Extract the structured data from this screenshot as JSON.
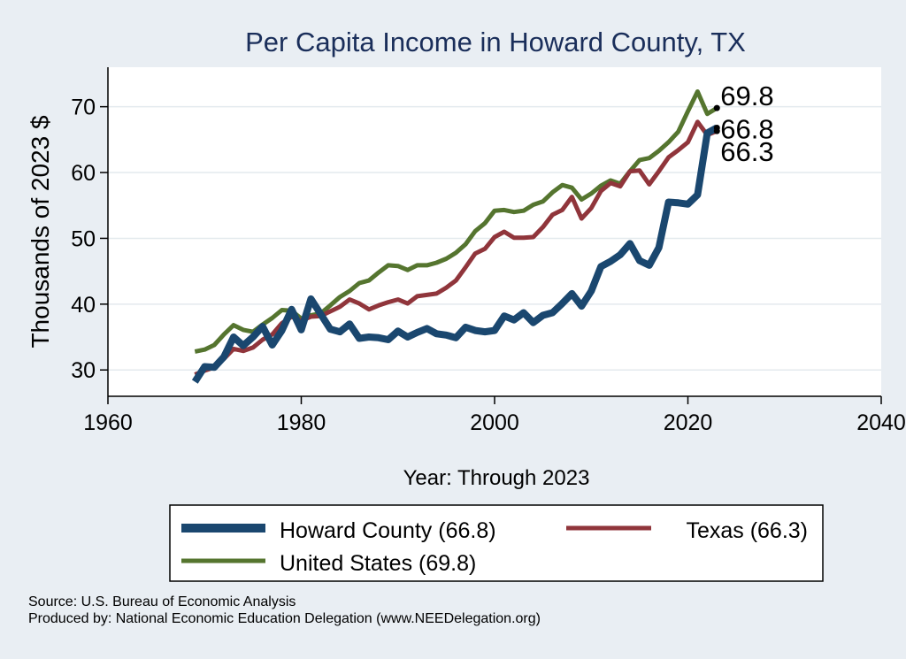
{
  "chart_data": {
    "type": "line",
    "title": "Per Capita Income in Howard County, TX",
    "xlabel": "Year: Through 2023",
    "ylabel": "Thousands of 2023 $",
    "xlim": [
      1960,
      2040
    ],
    "ylim": [
      26,
      76
    ],
    "xticks": [
      "1960",
      "1980",
      "2000",
      "2020",
      "2040"
    ],
    "yticks": [
      "30",
      "40",
      "50",
      "60",
      "70"
    ],
    "grid": true,
    "legend_position": "bottom",
    "x": [
      1969,
      1970,
      1971,
      1972,
      1973,
      1974,
      1975,
      1976,
      1977,
      1978,
      1979,
      1980,
      1981,
      1982,
      1983,
      1984,
      1985,
      1986,
      1987,
      1988,
      1989,
      1990,
      1991,
      1992,
      1993,
      1994,
      1995,
      1996,
      1997,
      1998,
      1999,
      2000,
      2001,
      2002,
      2003,
      2004,
      2005,
      2006,
      2007,
      2008,
      2009,
      2010,
      2011,
      2012,
      2013,
      2014,
      2015,
      2016,
      2017,
      2018,
      2019,
      2020,
      2021,
      2022,
      2023
    ],
    "series": [
      {
        "name": "Howard County (66.8)",
        "color": "#1a476f",
        "end_label": "66.8",
        "values": [
          28.2,
          30.5,
          30.4,
          32.0,
          35.0,
          33.7,
          35.0,
          36.6,
          33.8,
          36.0,
          39.2,
          36.1,
          40.8,
          38.5,
          36.2,
          35.8,
          37.0,
          34.8,
          35.0,
          34.9,
          34.6,
          35.9,
          35.0,
          35.7,
          36.3,
          35.5,
          35.3,
          34.9,
          36.5,
          36.0,
          35.8,
          36.0,
          38.2,
          37.6,
          38.7,
          37.2,
          38.3,
          38.7,
          40.1,
          41.6,
          39.7,
          42.0,
          45.7,
          46.5,
          47.5,
          49.2,
          46.6,
          45.9,
          48.6,
          55.5,
          55.4,
          55.2,
          56.6,
          66.0,
          66.8
        ]
      },
      {
        "name": "Texas (66.3)",
        "color": "#90353b",
        "end_label": "66.3",
        "values": [
          29.3,
          29.9,
          30.4,
          31.7,
          33.2,
          32.9,
          33.4,
          34.6,
          35.4,
          37.1,
          38.1,
          37.5,
          38.1,
          38.2,
          38.9,
          39.6,
          40.7,
          40.1,
          39.2,
          39.8,
          40.3,
          40.7,
          40.1,
          41.2,
          41.4,
          41.6,
          42.5,
          43.6,
          45.6,
          47.7,
          48.4,
          50.2,
          51.0,
          50.1,
          50.1,
          50.2,
          51.7,
          53.6,
          54.3,
          56.3,
          53.0,
          54.6,
          57.2,
          58.4,
          57.9,
          60.2,
          60.3,
          58.2,
          60.2,
          62.3,
          63.4,
          64.6,
          67.7,
          65.7,
          66.3
        ]
      },
      {
        "name": "United States (69.8)",
        "color": "#55752f",
        "end_label": "69.8",
        "values": [
          32.8,
          33.1,
          33.8,
          35.4,
          36.8,
          36.1,
          35.8,
          36.9,
          37.9,
          39.1,
          39.0,
          37.8,
          38.3,
          38.6,
          39.8,
          41.1,
          42.0,
          43.2,
          43.6,
          44.8,
          45.9,
          45.8,
          45.2,
          45.9,
          45.9,
          46.3,
          46.9,
          47.8,
          49.1,
          51.1,
          52.3,
          54.2,
          54.3,
          54.0,
          54.2,
          55.1,
          55.6,
          57.0,
          58.1,
          57.7,
          55.9,
          56.8,
          58.0,
          58.8,
          58.3,
          60.2,
          61.9,
          62.2,
          63.3,
          64.6,
          66.2,
          69.3,
          72.3,
          68.9,
          69.8
        ]
      }
    ]
  },
  "footer": {
    "source": "Source: U.S. Bureau of Economic Analysis",
    "produced_by": "Produced by: National Economic Education Delegation (www.NEEDelegation.org)"
  }
}
